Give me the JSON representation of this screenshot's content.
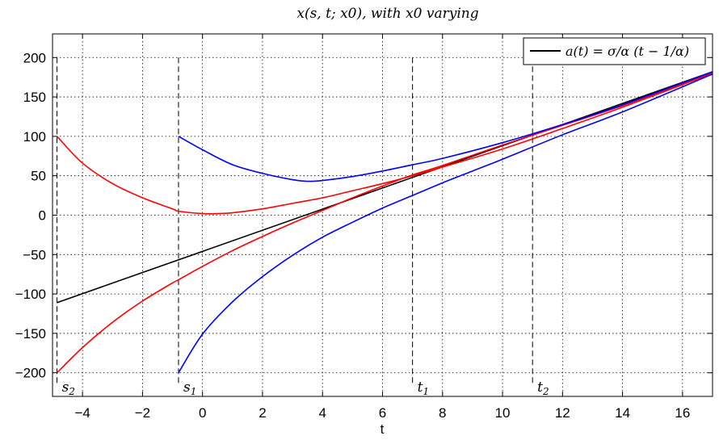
{
  "chart_data": {
    "type": "line",
    "title": "x(s, t; x0), with x0 varying",
    "xlabel": "t",
    "ylabel": "",
    "xlim": [
      -5.0,
      17.0
    ],
    "ylim": [
      -230,
      230
    ],
    "x_ticks": [
      -4,
      -2,
      0,
      2,
      4,
      6,
      8,
      10,
      12,
      14,
      16
    ],
    "y_ticks": [
      -200,
      -150,
      -100,
      -50,
      0,
      50,
      100,
      150,
      200
    ],
    "x_tick_labels": [
      "−4",
      "−2",
      "0",
      "2",
      "4",
      "6",
      "8",
      "10",
      "12",
      "14",
      "16"
    ],
    "y_tick_labels": [
      "−200",
      "−150",
      "−100",
      "−50",
      "0",
      "50",
      "100",
      "150",
      "200"
    ],
    "grid": true,
    "legend": {
      "placement": "top-right",
      "entries": [
        {
          "label": "a(t) = σ/α (t − 1/α)",
          "color": "#000000"
        }
      ]
    },
    "vlines": [
      {
        "label": "s",
        "sub": "2",
        "x": -4.85,
        "y_top": 200,
        "y_bottom": -213
      },
      {
        "label": "s",
        "sub": "1",
        "x": -0.8,
        "y_top": 200,
        "y_bottom": -213
      },
      {
        "label": "t",
        "sub": "1",
        "x": 7.0,
        "y_top": 200,
        "y_bottom": -213
      },
      {
        "label": "t",
        "sub": "2",
        "x": 11.0,
        "y_top": 200,
        "y_bottom": -213
      }
    ],
    "series": [
      {
        "color": "#000000",
        "x": [
          -4.85,
          17.0
        ],
        "y": [
          -111,
          182
        ]
      },
      {
        "color": "#ff0000",
        "x": [
          -4.85,
          -4,
          -3,
          -2,
          -1,
          -0.8,
          0,
          0.5,
          1,
          2,
          3,
          4,
          5,
          6,
          7,
          8,
          10,
          12,
          14,
          17
        ],
        "y": [
          100,
          66,
          40,
          22,
          8,
          5,
          2,
          2,
          3,
          8,
          15,
          22,
          31,
          40,
          50,
          61,
          84,
          110,
          137,
          180
        ]
      },
      {
        "color": "#ff0000",
        "x": [
          -4.85,
          -4,
          -3,
          -2,
          -1,
          -0.8,
          0,
          1,
          2,
          3,
          4,
          5,
          6,
          7,
          8,
          10,
          12,
          14,
          17
        ],
        "y": [
          -200,
          -168,
          -136,
          -109,
          -86,
          -82,
          -65,
          -45,
          -27,
          -10,
          6,
          22,
          37,
          51,
          63,
          89,
          114,
          139,
          181
        ]
      },
      {
        "color": "#0000ff",
        "x": [
          -0.8,
          0,
          1,
          2,
          3,
          3.5,
          4,
          5,
          6,
          7,
          8,
          10,
          12,
          14,
          17
        ],
        "y": [
          100,
          83,
          64,
          53,
          45,
          43,
          44,
          49,
          56,
          64,
          72,
          92,
          115,
          140,
          182
        ]
      },
      {
        "color": "#0000ff",
        "x": [
          -0.8,
          0,
          1,
          2,
          3,
          4,
          5,
          6,
          7,
          8,
          9,
          10,
          12,
          14,
          17
        ],
        "y": [
          -200,
          -151,
          -110,
          -78,
          -51,
          -28,
          -9,
          9,
          25,
          41,
          56,
          71,
          102,
          131,
          179
        ]
      }
    ]
  }
}
